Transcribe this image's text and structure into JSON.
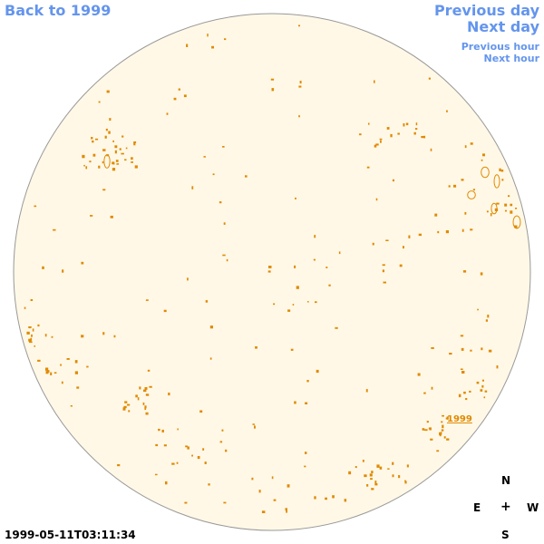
{
  "nav": {
    "back_label": "Back to 1999",
    "prev_day_label": "Previous day",
    "next_day_label": "Next day",
    "prev_hour_label": "Previous hour",
    "next_hour_label": "Next hour"
  },
  "disk": {
    "fill_color": "#fff8e7",
    "border_color": "#999999",
    "feature_color": "#e08a00",
    "year_label": "1999"
  },
  "timestamp": "1999-05-11T03:11:34",
  "compass": {
    "north": "N",
    "east": "E",
    "center": "+",
    "west": "W",
    "south": "S"
  }
}
